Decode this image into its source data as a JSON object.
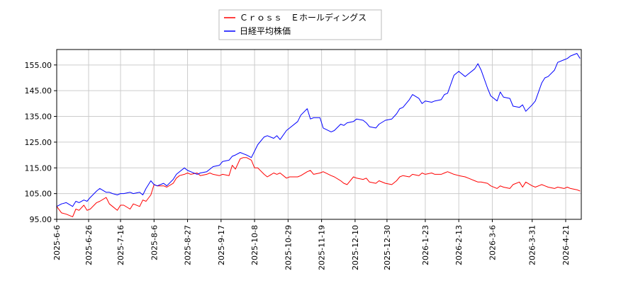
{
  "chart_data": {
    "type": "line",
    "ylim": [
      95,
      161
    ],
    "y_ticks": [
      "95.00",
      "105.00",
      "115.00",
      "125.00",
      "135.00",
      "145.00",
      "155.00"
    ],
    "x_ticks": [
      "2025-6-6",
      "2025-6-26",
      "2025-7-16",
      "2025-8-6",
      "2025-8-27",
      "2025-9-17",
      "2025-10-8",
      "2025-10-29",
      "2025-11-19",
      "2025-12-10",
      "2025-12-30",
      "2026-1-23",
      "2026-2-13",
      "2026-3-6",
      "2026-3-31",
      "2026-4-21"
    ],
    "grid": true,
    "legend": "top-center",
    "series": [
      {
        "name": "Ｃｒｏｓｓ　Ｅホールディングス",
        "color": "#ff0000",
        "points": [
          [
            "2025-06-06",
            100.0
          ],
          [
            "2025-06-09",
            97.5
          ],
          [
            "2025-06-12",
            97.0
          ],
          [
            "2025-06-16",
            96.0
          ],
          [
            "2025-06-18",
            99.0
          ],
          [
            "2025-06-20",
            98.5
          ],
          [
            "2025-06-23",
            100.5
          ],
          [
            "2025-06-25",
            98.5
          ],
          [
            "2025-06-27",
            99.0
          ],
          [
            "2025-07-01",
            101.5
          ],
          [
            "2025-07-03",
            102.0
          ],
          [
            "2025-07-07",
            103.5
          ],
          [
            "2025-07-09",
            101.0
          ],
          [
            "2025-07-11",
            100.0
          ],
          [
            "2025-07-14",
            98.5
          ],
          [
            "2025-07-16",
            100.5
          ],
          [
            "2025-07-18",
            100.5
          ],
          [
            "2025-07-22",
            99.0
          ],
          [
            "2025-07-24",
            101.0
          ],
          [
            "2025-07-28",
            100.0
          ],
          [
            "2025-07-30",
            102.5
          ],
          [
            "2025-08-01",
            102.0
          ],
          [
            "2025-08-04",
            104.5
          ],
          [
            "2025-08-06",
            108.5
          ],
          [
            "2025-08-08",
            108.0
          ],
          [
            "2025-08-12",
            108.0
          ],
          [
            "2025-08-14",
            107.5
          ],
          [
            "2025-08-18",
            109.0
          ],
          [
            "2025-08-20",
            111.0
          ],
          [
            "2025-08-22",
            112.0
          ],
          [
            "2025-08-25",
            112.5
          ],
          [
            "2025-08-27",
            113.0
          ],
          [
            "2025-08-29",
            112.5
          ],
          [
            "2025-09-02",
            113.0
          ],
          [
            "2025-09-04",
            112.0
          ],
          [
            "2025-09-08",
            112.5
          ],
          [
            "2025-09-10",
            113.0
          ],
          [
            "2025-09-12",
            112.5
          ],
          [
            "2025-09-16",
            112.0
          ],
          [
            "2025-09-18",
            112.5
          ],
          [
            "2025-09-22",
            112.0
          ],
          [
            "2025-09-24",
            116.0
          ],
          [
            "2025-09-26",
            114.5
          ],
          [
            "2025-09-29",
            118.5
          ],
          [
            "2025-10-01",
            119.0
          ],
          [
            "2025-10-03",
            119.0
          ],
          [
            "2025-10-06",
            118.0
          ],
          [
            "2025-10-08",
            115.0
          ],
          [
            "2025-10-10",
            115.0
          ],
          [
            "2025-10-14",
            112.5
          ],
          [
            "2025-10-16",
            111.5
          ],
          [
            "2025-10-20",
            113.0
          ],
          [
            "2025-10-22",
            112.5
          ],
          [
            "2025-10-24",
            113.0
          ],
          [
            "2025-10-28",
            111.0
          ],
          [
            "2025-10-30",
            111.5
          ],
          [
            "2025-11-04",
            111.5
          ],
          [
            "2025-11-06",
            112.0
          ],
          [
            "2025-11-10",
            113.5
          ],
          [
            "2025-11-12",
            114.0
          ],
          [
            "2025-11-14",
            112.5
          ],
          [
            "2025-11-18",
            113.0
          ],
          [
            "2025-11-20",
            113.5
          ],
          [
            "2025-11-25",
            112.0
          ],
          [
            "2025-11-27",
            111.5
          ],
          [
            "2025-12-01",
            110.0
          ],
          [
            "2025-12-03",
            109.0
          ],
          [
            "2025-12-05",
            108.5
          ],
          [
            "2025-12-09",
            111.5
          ],
          [
            "2025-12-11",
            111.0
          ],
          [
            "2025-12-15",
            110.5
          ],
          [
            "2025-12-17",
            111.0
          ],
          [
            "2025-12-19",
            109.5
          ],
          [
            "2025-12-23",
            109.0
          ],
          [
            "2025-12-25",
            110.0
          ],
          [
            "2025-12-29",
            109.0
          ],
          [
            "2026-01-02",
            108.5
          ],
          [
            "2026-01-05",
            110.0
          ],
          [
            "2026-01-07",
            111.5
          ],
          [
            "2026-01-09",
            112.0
          ],
          [
            "2026-01-13",
            111.5
          ],
          [
            "2026-01-15",
            112.5
          ],
          [
            "2026-01-19",
            112.0
          ],
          [
            "2026-01-21",
            113.0
          ],
          [
            "2026-01-23",
            112.5
          ],
          [
            "2026-01-27",
            113.0
          ],
          [
            "2026-01-29",
            112.5
          ],
          [
            "2026-02-02",
            112.5
          ],
          [
            "2026-02-04",
            113.0
          ],
          [
            "2026-02-06",
            113.5
          ],
          [
            "2026-02-10",
            112.5
          ],
          [
            "2026-02-13",
            112.0
          ],
          [
            "2026-02-17",
            111.5
          ],
          [
            "2026-02-19",
            111.0
          ],
          [
            "2026-02-23",
            110.0
          ],
          [
            "2026-02-25",
            109.5
          ],
          [
            "2026-02-27",
            109.5
          ],
          [
            "2026-03-03",
            109.0
          ],
          [
            "2026-03-05",
            108.0
          ],
          [
            "2026-03-09",
            107.0
          ],
          [
            "2026-03-11",
            108.0
          ],
          [
            "2026-03-13",
            107.5
          ],
          [
            "2026-03-17",
            107.0
          ],
          [
            "2026-03-19",
            108.5
          ],
          [
            "2026-03-23",
            109.5
          ],
          [
            "2026-03-25",
            107.5
          ],
          [
            "2026-03-27",
            109.5
          ],
          [
            "2026-03-31",
            108.0
          ],
          [
            "2026-04-02",
            107.5
          ],
          [
            "2026-04-06",
            108.5
          ],
          [
            "2026-04-08",
            108.0
          ],
          [
            "2026-04-10",
            107.5
          ],
          [
            "2026-04-14",
            107.0
          ],
          [
            "2026-04-16",
            107.5
          ],
          [
            "2026-04-20",
            107.0
          ],
          [
            "2026-04-22",
            107.5
          ],
          [
            "2026-04-24",
            107.0
          ],
          [
            "2026-04-28",
            106.5
          ],
          [
            "2026-04-30",
            106.0
          ]
        ]
      },
      {
        "name": "日経平均株価",
        "color": "#0000ff",
        "points": [
          [
            "2025-06-06",
            100.0
          ],
          [
            "2025-06-09",
            101.0
          ],
          [
            "2025-06-12",
            101.5
          ],
          [
            "2025-06-16",
            100.0
          ],
          [
            "2025-06-18",
            102.0
          ],
          [
            "2025-06-20",
            101.5
          ],
          [
            "2025-06-23",
            102.5
          ],
          [
            "2025-06-25",
            102.0
          ],
          [
            "2025-06-27",
            103.5
          ],
          [
            "2025-07-01",
            106.0
          ],
          [
            "2025-07-03",
            107.0
          ],
          [
            "2025-07-07",
            105.5
          ],
          [
            "2025-07-09",
            105.5
          ],
          [
            "2025-07-11",
            105.0
          ],
          [
            "2025-07-14",
            104.5
          ],
          [
            "2025-07-16",
            105.0
          ],
          [
            "2025-07-18",
            105.0
          ],
          [
            "2025-07-22",
            105.5
          ],
          [
            "2025-07-24",
            105.0
          ],
          [
            "2025-07-28",
            105.5
          ],
          [
            "2025-07-30",
            104.5
          ],
          [
            "2025-08-01",
            107.0
          ],
          [
            "2025-08-04",
            110.0
          ],
          [
            "2025-08-06",
            108.5
          ],
          [
            "2025-08-08",
            108.0
          ],
          [
            "2025-08-12",
            109.0
          ],
          [
            "2025-08-14",
            108.0
          ],
          [
            "2025-08-18",
            110.5
          ],
          [
            "2025-08-20",
            112.5
          ],
          [
            "2025-08-22",
            113.5
          ],
          [
            "2025-08-25",
            115.0
          ],
          [
            "2025-08-27",
            114.0
          ],
          [
            "2025-08-29",
            113.5
          ],
          [
            "2025-09-02",
            112.5
          ],
          [
            "2025-09-04",
            113.0
          ],
          [
            "2025-09-08",
            113.5
          ],
          [
            "2025-09-10",
            114.5
          ],
          [
            "2025-09-12",
            115.5
          ],
          [
            "2025-09-16",
            116.0
          ],
          [
            "2025-09-18",
            117.5
          ],
          [
            "2025-09-22",
            118.0
          ],
          [
            "2025-09-24",
            119.5
          ],
          [
            "2025-09-26",
            120.0
          ],
          [
            "2025-09-29",
            121.0
          ],
          [
            "2025-10-01",
            120.5
          ],
          [
            "2025-10-03",
            120.0
          ],
          [
            "2025-10-06",
            119.0
          ],
          [
            "2025-10-08",
            121.5
          ],
          [
            "2025-10-10",
            124.0
          ],
          [
            "2025-10-14",
            127.0
          ],
          [
            "2025-10-16",
            127.5
          ],
          [
            "2025-10-20",
            126.5
          ],
          [
            "2025-10-22",
            127.5
          ],
          [
            "2025-10-24",
            126.0
          ],
          [
            "2025-10-28",
            129.5
          ],
          [
            "2025-10-30",
            130.5
          ],
          [
            "2025-11-04",
            133.0
          ],
          [
            "2025-11-06",
            135.5
          ],
          [
            "2025-11-10",
            138.0
          ],
          [
            "2025-11-12",
            134.0
          ],
          [
            "2025-11-14",
            134.5
          ],
          [
            "2025-11-18",
            134.5
          ],
          [
            "2025-11-20",
            130.5
          ],
          [
            "2025-11-25",
            129.0
          ],
          [
            "2025-11-27",
            129.5
          ],
          [
            "2025-12-01",
            132.0
          ],
          [
            "2025-12-03",
            131.5
          ],
          [
            "2025-12-05",
            132.5
          ],
          [
            "2025-12-09",
            133.0
          ],
          [
            "2025-12-11",
            134.0
          ],
          [
            "2025-12-15",
            133.5
          ],
          [
            "2025-12-17",
            132.5
          ],
          [
            "2025-12-19",
            131.0
          ],
          [
            "2025-12-23",
            130.5
          ],
          [
            "2025-12-25",
            132.0
          ],
          [
            "2025-12-29",
            133.5
          ],
          [
            "2026-01-02",
            134.0
          ],
          [
            "2026-01-05",
            136.0
          ],
          [
            "2026-01-07",
            138.0
          ],
          [
            "2026-01-09",
            138.5
          ],
          [
            "2026-01-13",
            141.5
          ],
          [
            "2026-01-15",
            143.5
          ],
          [
            "2026-01-19",
            142.0
          ],
          [
            "2026-01-21",
            140.0
          ],
          [
            "2026-01-23",
            141.0
          ],
          [
            "2026-01-27",
            140.5
          ],
          [
            "2026-01-29",
            141.0
          ],
          [
            "2026-02-02",
            141.5
          ],
          [
            "2026-02-04",
            143.5
          ],
          [
            "2026-02-06",
            144.0
          ],
          [
            "2026-02-10",
            151.0
          ],
          [
            "2026-02-13",
            152.5
          ],
          [
            "2026-02-17",
            150.5
          ],
          [
            "2026-02-19",
            151.5
          ],
          [
            "2026-02-23",
            153.5
          ],
          [
            "2026-02-25",
            155.5
          ],
          [
            "2026-02-27",
            153.0
          ],
          [
            "2026-03-03",
            146.0
          ],
          [
            "2026-03-05",
            143.0
          ],
          [
            "2026-03-09",
            141.0
          ],
          [
            "2026-03-11",
            144.5
          ],
          [
            "2026-03-13",
            142.5
          ],
          [
            "2026-03-17",
            142.0
          ],
          [
            "2026-03-19",
            139.0
          ],
          [
            "2026-03-23",
            138.5
          ],
          [
            "2026-03-25",
            139.5
          ],
          [
            "2026-03-27",
            137.0
          ],
          [
            "2026-03-31",
            139.5
          ],
          [
            "2026-04-02",
            141.0
          ],
          [
            "2026-04-06",
            148.0
          ],
          [
            "2026-04-08",
            150.0
          ],
          [
            "2026-04-10",
            150.5
          ],
          [
            "2026-04-14",
            153.0
          ],
          [
            "2026-04-16",
            156.0
          ],
          [
            "2026-04-20",
            157.0
          ],
          [
            "2026-04-22",
            157.5
          ],
          [
            "2026-04-24",
            158.5
          ],
          [
            "2026-04-28",
            159.5
          ],
          [
            "2026-04-30",
            157.5
          ]
        ]
      }
    ]
  }
}
